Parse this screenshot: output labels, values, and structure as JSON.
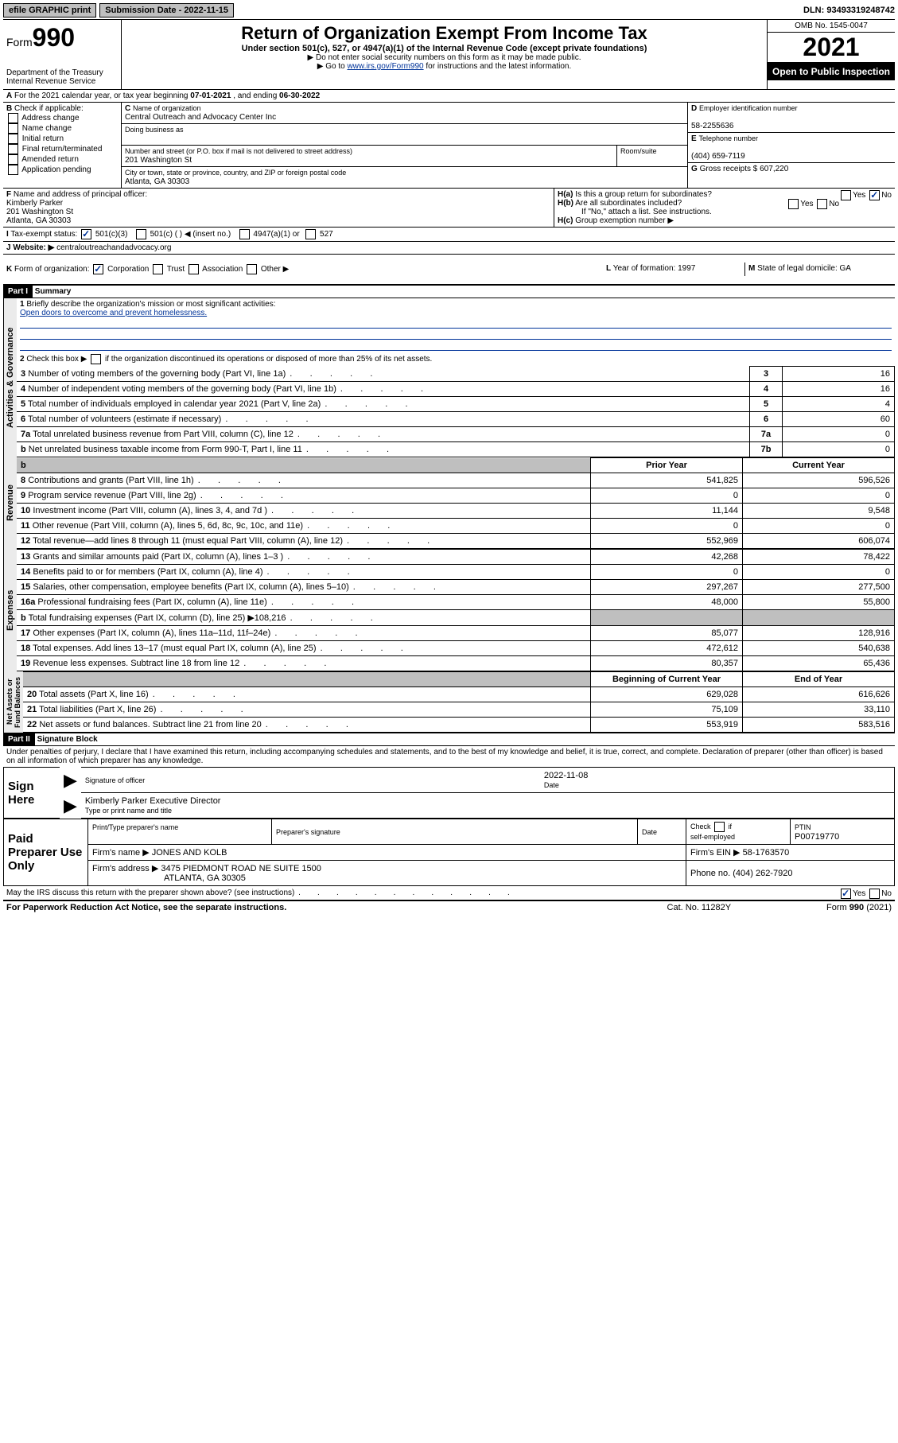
{
  "top": {
    "efile": "efile GRAPHIC print",
    "submission": "Submission Date - 2022-11-15",
    "dln": "DLN: 93493319248742"
  },
  "header": {
    "form": "Form",
    "form_no": "990",
    "dept": "Department of the Treasury",
    "irs": "Internal Revenue Service",
    "title": "Return of Organization Exempt From Income Tax",
    "sub1": "Under section 501(c), 527, or 4947(a)(1) of the Internal Revenue Code (except private foundations)",
    "sub2": "▶ Do not enter social security numbers on this form as it may be made public.",
    "sub3": "▶ Go to ",
    "sub3_link": "www.irs.gov/Form990",
    "sub3_b": " for instructions and the latest information.",
    "omb": "OMB No. 1545-0047",
    "year": "2021",
    "open": "Open to Public Inspection"
  },
  "A": {
    "text": "For the 2021 calendar year, or tax year beginning ",
    "begin": "07-01-2021",
    "mid": " , and ending ",
    "end": "06-30-2022"
  },
  "B": {
    "label": "Check if applicable:",
    "items": [
      "Address change",
      "Name change",
      "Initial return",
      "Final return/terminated",
      "Amended return",
      "Application pending"
    ]
  },
  "C": {
    "name_lbl": "Name of organization",
    "name": "Central Outreach and Advocacy Center Inc",
    "dba_lbl": "Doing business as",
    "addr_lbl": "Number and street (or P.O. box if mail is not delivered to street address)",
    "room_lbl": "Room/suite",
    "addr": "201 Washington St",
    "city_lbl": "City or town, state or province, country, and ZIP or foreign postal code",
    "city": "Atlanta, GA  30303"
  },
  "D": {
    "lbl": "Employer identification number",
    "val": "58-2255636"
  },
  "E": {
    "lbl": "Telephone number",
    "val": "(404) 659-7119"
  },
  "G": {
    "lbl": "Gross receipts $",
    "val": "607,220"
  },
  "F": {
    "lbl": "Name and address of principal officer:",
    "name": "Kimberly Parker",
    "addr1": "201 Washington St",
    "addr2": "Atlanta, GA  30303"
  },
  "H": {
    "a": "Is this a group return for subordinates?",
    "b": "Are all subordinates included?",
    "note": "If \"No,\" attach a list. See instructions.",
    "c": "Group exemption number ▶"
  },
  "I": {
    "lbl": "Tax-exempt status:",
    "opts": [
      "501(c)(3)",
      "501(c) (  ) ◀ (insert no.)",
      "4947(a)(1) or",
      "527"
    ]
  },
  "J": {
    "lbl": "Website: ▶",
    "val": "centraloutreachandadvocacy.org"
  },
  "K": {
    "lbl": "Form of organization:",
    "opts": [
      "Corporation",
      "Trust",
      "Association",
      "Other ▶"
    ]
  },
  "L": {
    "lbl": "Year of formation:",
    "val": "1997"
  },
  "M": {
    "lbl": "State of legal domicile:",
    "val": "GA"
  },
  "part1": {
    "hdr": "Part I",
    "title": "Summary",
    "q1": "Briefly describe the organization's mission or most significant activities:",
    "mission": "Open doors to overcome and prevent homelessness.",
    "q2": "Check this box ▶        if the organization discontinued its operations or disposed of more than 25% of its net assets.",
    "rows": [
      {
        "n": "3",
        "lbl": "Number of voting members of the governing body (Part VI, line 1a)",
        "box": "3",
        "val": "16"
      },
      {
        "n": "4",
        "lbl": "Number of independent voting members of the governing body (Part VI, line 1b)",
        "box": "4",
        "val": "16"
      },
      {
        "n": "5",
        "lbl": "Total number of individuals employed in calendar year 2021 (Part V, line 2a)",
        "box": "5",
        "val": "4"
      },
      {
        "n": "6",
        "lbl": "Total number of volunteers (estimate if necessary)",
        "box": "6",
        "val": "60"
      },
      {
        "n": "7a",
        "lbl": "Total unrelated business revenue from Part VIII, column (C), line 12",
        "box": "7a",
        "val": "0"
      },
      {
        "n": "b",
        "lbl": "Net unrelated business taxable income from Form 990-T, Part I, line 11",
        "box": "7b",
        "val": "0"
      }
    ],
    "col_prior": "Prior Year",
    "col_curr": "Current Year",
    "rev": [
      {
        "n": "8",
        "lbl": "Contributions and grants (Part VIII, line 1h)",
        "p": "541,825",
        "c": "596,526"
      },
      {
        "n": "9",
        "lbl": "Program service revenue (Part VIII, line 2g)",
        "p": "0",
        "c": "0"
      },
      {
        "n": "10",
        "lbl": "Investment income (Part VIII, column (A), lines 3, 4, and 7d )",
        "p": "11,144",
        "c": "9,548"
      },
      {
        "n": "11",
        "lbl": "Other revenue (Part VIII, column (A), lines 5, 6d, 8c, 9c, 10c, and 11e)",
        "p": "0",
        "c": "0"
      },
      {
        "n": "12",
        "lbl": "Total revenue—add lines 8 through 11 (must equal Part VIII, column (A), line 12)",
        "p": "552,969",
        "c": "606,074"
      }
    ],
    "exp": [
      {
        "n": "13",
        "lbl": "Grants and similar amounts paid (Part IX, column (A), lines 1–3 )",
        "p": "42,268",
        "c": "78,422"
      },
      {
        "n": "14",
        "lbl": "Benefits paid to or for members (Part IX, column (A), line 4)",
        "p": "0",
        "c": "0"
      },
      {
        "n": "15",
        "lbl": "Salaries, other compensation, employee benefits (Part IX, column (A), lines 5–10)",
        "p": "297,267",
        "c": "277,500"
      },
      {
        "n": "16a",
        "lbl": "Professional fundraising fees (Part IX, column (A), line 11e)",
        "p": "48,000",
        "c": "55,800"
      },
      {
        "n": "b",
        "lbl": "Total fundraising expenses (Part IX, column (D), line 25) ▶108,216",
        "p": "",
        "c": "",
        "gray": true
      },
      {
        "n": "17",
        "lbl": "Other expenses (Part IX, column (A), lines 11a–11d, 11f–24e)",
        "p": "85,077",
        "c": "128,916"
      },
      {
        "n": "18",
        "lbl": "Total expenses. Add lines 13–17 (must equal Part IX, column (A), line 25)",
        "p": "472,612",
        "c": "540,638"
      },
      {
        "n": "19",
        "lbl": "Revenue less expenses. Subtract line 18 from line 12",
        "p": "80,357",
        "c": "65,436"
      }
    ],
    "col_boc": "Beginning of Current Year",
    "col_eoy": "End of Year",
    "net": [
      {
        "n": "20",
        "lbl": "Total assets (Part X, line 16)",
        "p": "629,028",
        "c": "616,626"
      },
      {
        "n": "21",
        "lbl": "Total liabilities (Part X, line 26)",
        "p": "75,109",
        "c": "33,110"
      },
      {
        "n": "22",
        "lbl": "Net assets or fund balances. Subtract line 21 from line 20",
        "p": "553,919",
        "c": "583,516"
      }
    ]
  },
  "part2": {
    "hdr": "Part II",
    "title": "Signature Block",
    "decl": "Under penalties of perjury, I declare that I have examined this return, including accompanying schedules and statements, and to the best of my knowledge and belief, it is true, correct, and complete. Declaration of preparer (other than officer) is based on all information of which preparer has any knowledge.",
    "sign_here": "Sign Here",
    "sig_date": "2022-11-08",
    "sig_lbl": "Signature of officer",
    "date_lbl": "Date",
    "officer": "Kimberly Parker  Executive Director",
    "officer_lbl": "Type or print name and title",
    "paid": "Paid Preparer Use Only",
    "prep_name_lbl": "Print/Type preparer's name",
    "prep_sig_lbl": "Preparer's signature",
    "prep_date_lbl": "Date",
    "self_emp": "Check        if self-employed",
    "ptin_lbl": "PTIN",
    "ptin": "P00719770",
    "firm_name_lbl": "Firm's name    ▶",
    "firm_name": "JONES AND KOLB",
    "firm_ein_lbl": "Firm's EIN ▶",
    "firm_ein": "58-1763570",
    "firm_addr_lbl": "Firm's address ▶",
    "firm_addr": "3475 PIEDMONT ROAD NE SUITE 1500",
    "firm_city": "ATLANTA, GA  30305",
    "phone_lbl": "Phone no.",
    "phone": "(404) 262-7920",
    "discuss": "May the IRS discuss this return with the preparer shown above? (see instructions)"
  },
  "footer": {
    "paperwork": "For Paperwork Reduction Act Notice, see the separate instructions.",
    "cat": "Cat. No. 11282Y",
    "form": "Form 990 (2021)"
  }
}
